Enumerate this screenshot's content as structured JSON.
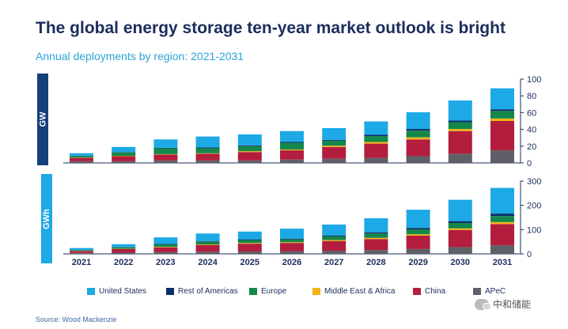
{
  "header": {
    "title": "The global energy storage ten-year market outlook is bright",
    "subtitle": "Annual deployments  by region: 2021-2031"
  },
  "panels": {
    "top_label": "GW",
    "bottom_label": "GWh"
  },
  "legend": {
    "items": [
      {
        "label": "United States",
        "color": "#1ca9e6"
      },
      {
        "label": "Rest of Americas",
        "color": "#0b2f6b"
      },
      {
        "label": "Europe",
        "color": "#14884a"
      },
      {
        "label": "Middle East & Africa",
        "color": "#f2b418"
      },
      {
        "label": "China",
        "color": "#b31d3e"
      },
      {
        "label": "APeC",
        "color": "#5f6067"
      }
    ]
  },
  "source": "Source: Wood Mackenzie",
  "watermark": "中和储能",
  "colors": {
    "title": "#1b2d5c",
    "subtitle": "#29a3d6",
    "gw_tab": "#163f7a",
    "gwh_tab": "#1ca9e6",
    "axis": "#1b2d5c"
  },
  "chart_data": [
    {
      "type": "bar",
      "stacked": true,
      "title": "",
      "ylabel": "GW",
      "ylim": [
        0,
        100
      ],
      "yticks": [
        0,
        20,
        40,
        60,
        80,
        100
      ],
      "yaxis_position": "right",
      "categories": [
        "2021",
        "2022",
        "2023",
        "2024",
        "2025",
        "2026",
        "2027",
        "2028",
        "2029",
        "2030",
        "2031"
      ],
      "series": [
        {
          "name": "APeC",
          "values": [
            2,
            2,
            3,
            3,
            3,
            4,
            5,
            6,
            8,
            11,
            15
          ]
        },
        {
          "name": "China",
          "values": [
            4,
            6,
            7,
            8,
            10,
            11,
            14,
            17,
            20,
            27,
            35
          ]
        },
        {
          "name": "Middle East & Africa",
          "values": [
            0.3,
            0.5,
            0.5,
            0.5,
            1,
            1,
            1.5,
            2,
            2.5,
            2.5,
            3
          ]
        },
        {
          "name": "Europe",
          "values": [
            2,
            4,
            7,
            6,
            6,
            8,
            6,
            7,
            8,
            8,
            9
          ]
        },
        {
          "name": "Rest of Americas",
          "values": [
            0.3,
            0.5,
            0.5,
            1,
            1,
            1,
            1,
            1.5,
            2,
            2,
            2
          ]
        },
        {
          "name": "United States",
          "values": [
            3,
            6,
            10,
            13,
            13,
            13,
            14,
            16,
            20,
            24,
            25
          ]
        }
      ]
    },
    {
      "type": "bar",
      "stacked": true,
      "title": "",
      "ylabel": "GWh",
      "ylim": [
        0,
        300
      ],
      "yticks": [
        0,
        100,
        200,
        300
      ],
      "yaxis_position": "right",
      "categories": [
        "2021",
        "2022",
        "2023",
        "2024",
        "2025",
        "2026",
        "2027",
        "2028",
        "2029",
        "2030",
        "2031"
      ],
      "series": [
        {
          "name": "APeC",
          "values": [
            4,
            5,
            7,
            9,
            10,
            11,
            13,
            16,
            20,
            28,
            35
          ]
        },
        {
          "name": "China",
          "values": [
            8,
            15,
            20,
            28,
            32,
            34,
            40,
            45,
            55,
            70,
            88
          ]
        },
        {
          "name": "Middle East & Africa",
          "values": [
            0.5,
            1,
            2,
            2,
            3,
            3,
            4,
            5,
            6,
            7,
            8
          ]
        },
        {
          "name": "Europe",
          "values": [
            3,
            6,
            10,
            12,
            12,
            12,
            15,
            18,
            20,
            22,
            25
          ]
        },
        {
          "name": "Rest of Americas",
          "values": [
            0.5,
            1,
            2,
            2,
            3,
            3,
            4,
            5,
            6,
            8,
            10
          ]
        },
        {
          "name": "United States",
          "values": [
            8,
            12,
            27,
            31,
            32,
            41,
            45,
            58,
            75,
            88,
            106
          ]
        }
      ]
    }
  ]
}
